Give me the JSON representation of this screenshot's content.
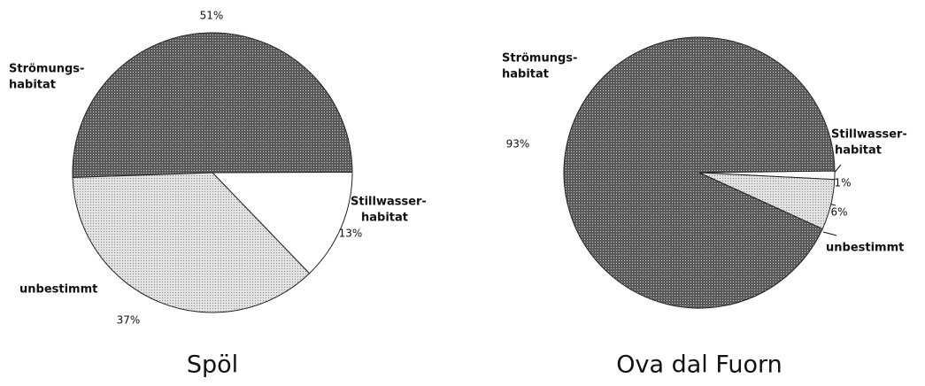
{
  "chart_data": [
    {
      "type": "pie",
      "title": "Spöl",
      "categories": [
        [
          "Strömungs-",
          "habitat"
        ],
        [
          "Stillwasser-",
          "habitat"
        ],
        [
          "unbestimmt"
        ]
      ],
      "values": [
        51,
        13,
        37
      ],
      "value_labels": [
        "51%",
        "13%",
        "37%"
      ],
      "colors": [
        "#6e6e6e",
        "#ffffff",
        "#cdcdcd"
      ]
    },
    {
      "type": "pie",
      "title": "Ova dal Fuorn",
      "categories": [
        [
          "Strömungs-",
          "habitat"
        ],
        [
          "Stillwasser-",
          "habitat"
        ],
        [
          "unbestimmt"
        ]
      ],
      "values": [
        93,
        1,
        6
      ],
      "value_labels": [
        "93%",
        "1%",
        "6%"
      ],
      "colors": [
        "#6e6e6e",
        "#ffffff",
        "#cdcdcd"
      ]
    }
  ]
}
